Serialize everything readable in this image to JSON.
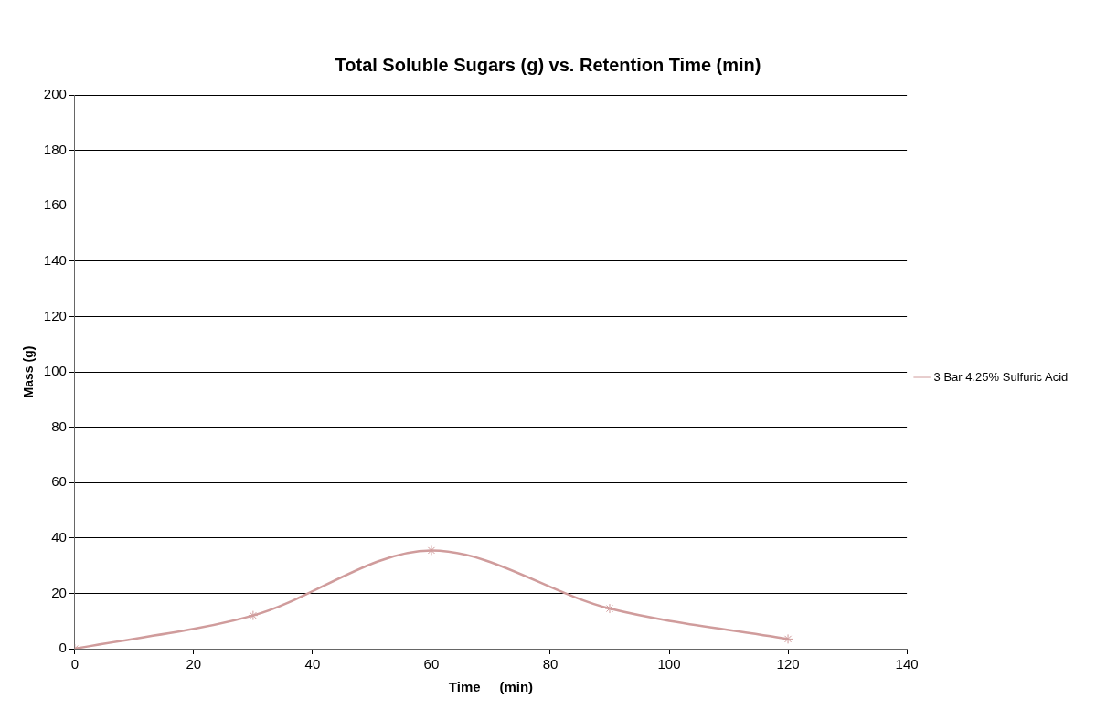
{
  "chart_data": {
    "type": "line",
    "title": "Total Soluble Sugars (g) vs. Retention Time (min)",
    "xlabel": "Time     (min)",
    "ylabel": "Mass (g)",
    "x": [
      0,
      30,
      60,
      90,
      120
    ],
    "series": [
      {
        "name": "3 Bar 4.25% Sulfuric Acid",
        "color": "#d09c9c",
        "values": [
          0,
          12,
          35.5,
          14.5,
          3.5
        ]
      }
    ],
    "xlim": [
      0,
      140
    ],
    "xticks": [
      0,
      20,
      40,
      60,
      80,
      100,
      120,
      140
    ],
    "ylim": [
      0,
      200
    ],
    "yticks": [
      0,
      20,
      40,
      60,
      80,
      100,
      120,
      140,
      160,
      180,
      200
    ],
    "grid": "y",
    "legend": "right",
    "marker": "cross",
    "line_style": "solid"
  }
}
